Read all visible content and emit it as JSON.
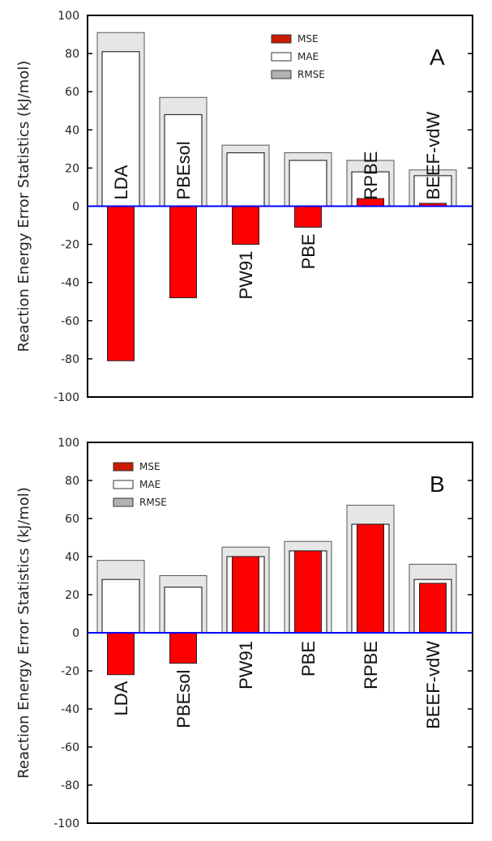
{
  "chart_data": [
    {
      "type": "bar",
      "panel_label": "A",
      "categories": [
        "LDA",
        "PBEsol",
        "PW91",
        "PBE",
        "RPBE",
        "BEEF-vdW"
      ],
      "series": [
        {
          "name": "MSE",
          "values": [
            -81,
            -48,
            -20,
            -11,
            4,
            1.5
          ]
        },
        {
          "name": "MAE",
          "values": [
            81,
            48,
            28,
            24,
            18,
            16
          ]
        },
        {
          "name": "RMSE",
          "values": [
            91,
            57,
            32,
            28,
            24,
            19
          ]
        }
      ],
      "legend": [
        "MSE",
        "MAE",
        "RMSE"
      ],
      "ylabel": "Reaction Energy Error Statistics (kJ/mol)",
      "ylim": [
        -100,
        100
      ],
      "yticks": [
        "100",
        "80",
        "60",
        "40",
        "20",
        "0",
        "-20",
        "-40",
        "-60",
        "-80",
        "-100"
      ],
      "grid": false,
      "legend_position": "top-right"
    },
    {
      "type": "bar",
      "panel_label": "B",
      "categories": [
        "LDA",
        "PBEsol",
        "PW91",
        "PBE",
        "RPBE",
        "BEEF-vdW"
      ],
      "series": [
        {
          "name": "MSE",
          "values": [
            -22,
            -16,
            40,
            43,
            57,
            26
          ]
        },
        {
          "name": "MAE",
          "values": [
            28,
            24,
            40,
            43,
            57,
            28
          ]
        },
        {
          "name": "RMSE",
          "values": [
            38,
            30,
            45,
            48,
            67,
            36
          ]
        }
      ],
      "legend": [
        "MSE",
        "MAE",
        "RMSE"
      ],
      "ylabel": "Reaction Energy Error Statistics (kJ/mol)",
      "ylim": [
        -100,
        100
      ],
      "yticks": [
        "100",
        "80",
        "60",
        "40",
        "20",
        "0",
        "-20",
        "-40",
        "-60",
        "-80",
        "-100"
      ],
      "grid": false,
      "legend_position": "top-left"
    }
  ],
  "colors": {
    "mse": "#ff0000",
    "mse_legend": "#cc1a00",
    "mae": "#ffffff",
    "rmse": "#e6e6e6",
    "rmse_legend": "#b3b3b3",
    "zero_line": "#0000ff"
  }
}
